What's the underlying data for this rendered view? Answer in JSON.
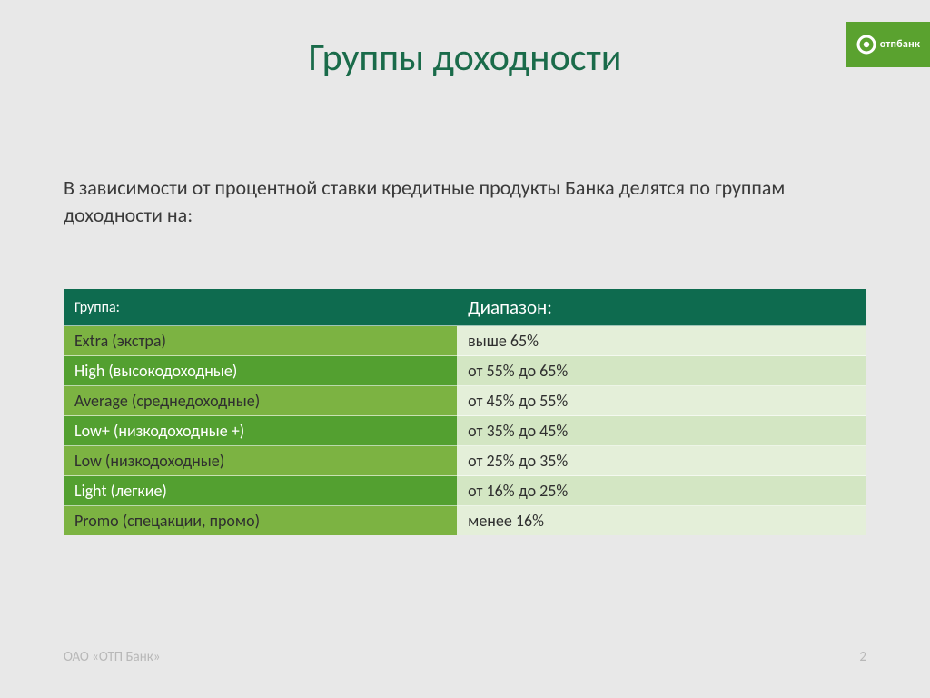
{
  "logo": {
    "box_bg": "#5aa22f",
    "text": "отпбанк",
    "text_color": "#ffffff",
    "circle_outer": "#ffffff",
    "circle_inner": "#5aa22f"
  },
  "title": {
    "text": "Группы доходности",
    "color": "#1a6b4a",
    "fontsize": 42
  },
  "intro": {
    "text": "В зависимости от процентной ставки кредитные продукты Банка делятся по группам доходности на:",
    "color": "#3a3a3a",
    "fontsize": 22
  },
  "table": {
    "header": {
      "col1": "Группа:",
      "col2": "Диапазон:",
      "bg": "#0e6b4f",
      "color": "#ffffff",
      "col2_fontsize": 21,
      "col1_fontsize": 16
    },
    "rows": [
      {
        "group": "Extra (экстра)",
        "range": "выше 65%",
        "col1_bg": "#7cb342",
        "col2_bg": "#e4efd9",
        "col1_color": "#2f2f2f",
        "col2_color": "#2f2f2f"
      },
      {
        "group": "High (высокодоходные)",
        "range": "от 55% до 65%",
        "col1_bg": "#53a030",
        "col2_bg": "#d3e6c3",
        "col1_color": "#ffffff",
        "col2_color": "#2f2f2f"
      },
      {
        "group": "Average (среднедоходные)",
        "range": "от 45% до 55%",
        "col1_bg": "#7cb342",
        "col2_bg": "#e4efd9",
        "col1_color": "#2f2f2f",
        "col2_color": "#2f2f2f"
      },
      {
        "group": "Low+ (низкодоходные +)",
        "range": "от 35% до 45%",
        "col1_bg": "#53a030",
        "col2_bg": "#d3e6c3",
        "col1_color": "#ffffff",
        "col2_color": "#2f2f2f"
      },
      {
        "group": "Low (низкодоходные)",
        "range": "от 25% до 35%",
        "col1_bg": "#7cb342",
        "col2_bg": "#e4efd9",
        "col1_color": "#2f2f2f",
        "col2_color": "#2f2f2f"
      },
      {
        "group": "Light (легкие)",
        "range": "от 16% до 25%",
        "col1_bg": "#53a030",
        "col2_bg": "#d3e6c3",
        "col1_color": "#ffffff",
        "col2_color": "#2f2f2f"
      },
      {
        "group": "Promo (спецакции, промо)",
        "range": "менее 16%",
        "col1_bg": "#7cb342",
        "col2_bg": "#e4efd9",
        "col1_color": "#2f2f2f",
        "col2_color": "#2f2f2f"
      }
    ]
  },
  "footer": {
    "company": "ОАО «ОТП Банк»",
    "page": "2",
    "color": "#b8b8b8"
  },
  "background": "#e8e8e8"
}
